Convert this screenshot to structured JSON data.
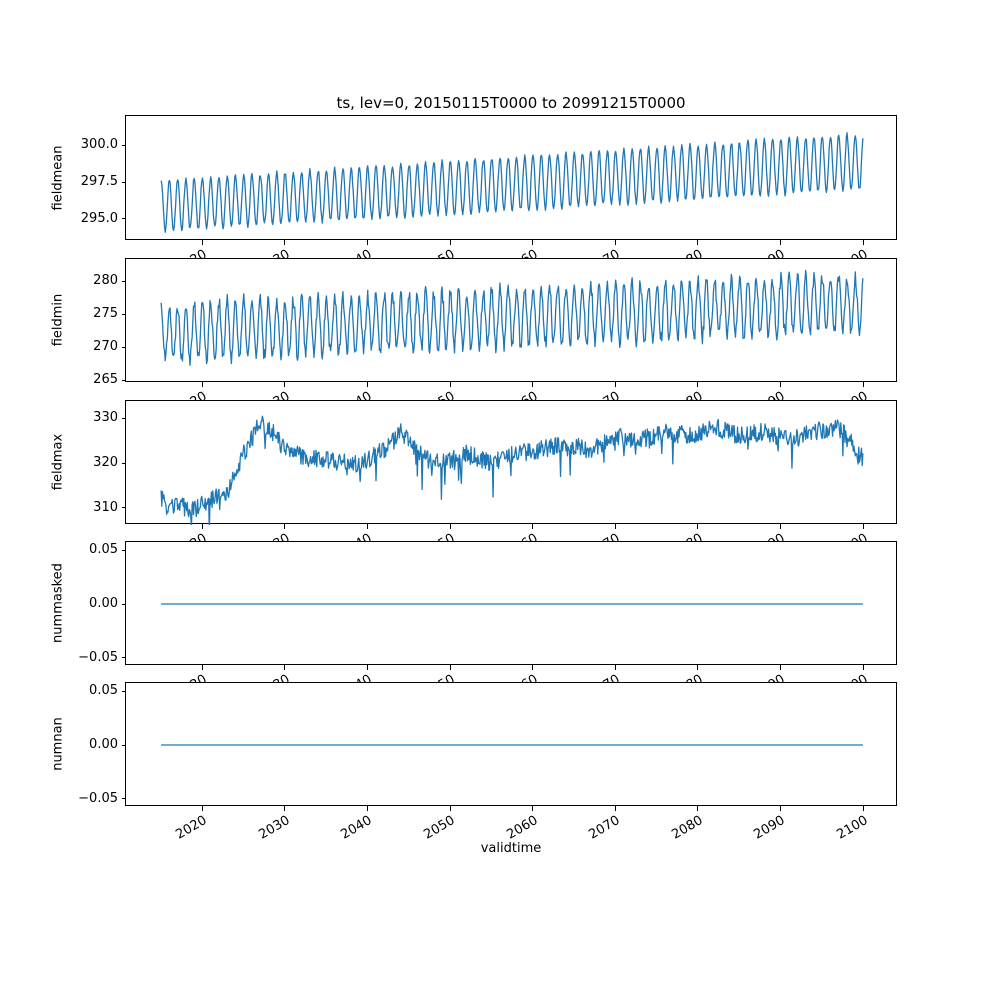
{
  "title": "ts, lev=0, 20150115T0000 to 20991215T0000",
  "line_color": "#1f77b4",
  "x_axis": {
    "label": "validtime",
    "xlim": [
      2010.79,
      2104.21
    ],
    "tick_values": [
      2020,
      2030,
      2040,
      2050,
      2060,
      2070,
      2080,
      2090,
      2100
    ],
    "tick_labels": [
      "2020",
      "2030",
      "2040",
      "2050",
      "2060",
      "2070",
      "2080",
      "2090",
      "2100"
    ]
  },
  "chart_data": [
    {
      "type": "line",
      "ylabel": "fieldmean",
      "ylim": [
        293.5,
        302.0
      ],
      "ytick_values": [
        295.0,
        297.5,
        300.0
      ],
      "ytick_labels": [
        "295.0",
        "297.5",
        "300.0"
      ],
      "x_range": [
        2015.04,
        2099.96
      ],
      "points_per_year": 12,
      "series_model": {
        "kind": "seasonal",
        "base_start": 295.9,
        "base_end": 298.9,
        "amp_start": 1.7,
        "amp_end": 1.9,
        "phase": 0.21,
        "noise": 0.15,
        "seed": 11
      },
      "summary": "Monthly mean field: annual cycle oscillating ~294.2-297.6 in 2015 rising steadily to ~297.0-301.5 by 2100"
    },
    {
      "type": "line",
      "ylabel": "fieldmin",
      "ylim": [
        264.6,
        283.4
      ],
      "ytick_values": [
        265,
        270,
        275,
        280
      ],
      "ytick_labels": [
        "265",
        "270",
        "275",
        "280"
      ],
      "x_range": [
        2015.04,
        2099.96
      ],
      "points_per_year": 12,
      "series_model": {
        "kind": "seasonal",
        "base_start": 272.3,
        "base_end": 276.8,
        "amp_start": 4.2,
        "amp_end": 4.2,
        "phase": 0.21,
        "noise": 1.1,
        "seed": 22
      },
      "summary": "Monthly minimum field: noisy annual cycle ~265.5-280 early, rising to ~271-282.5 by 2100"
    },
    {
      "type": "line",
      "ylabel": "fieldmax",
      "ylim": [
        306.2,
        333.8
      ],
      "ytick_values": [
        310,
        320,
        330
      ],
      "ytick_labels": [
        "310",
        "320",
        "330"
      ],
      "x_range": [
        2015.04,
        2099.96
      ],
      "points_per_year": 12,
      "series_model": {
        "kind": "piecewise",
        "noise": 2.0,
        "dip_prob": 0.05,
        "dip_max": 7,
        "seed": 33,
        "knots": [
          [
            2015.0,
            314
          ],
          [
            2015.5,
            310
          ],
          [
            2017,
            310.5
          ],
          [
            2019,
            309.5
          ],
          [
            2021,
            312
          ],
          [
            2023,
            313
          ],
          [
            2025,
            322
          ],
          [
            2027,
            329
          ],
          [
            2028.5,
            327
          ],
          [
            2030,
            323
          ],
          [
            2033,
            321
          ],
          [
            2036,
            320.5
          ],
          [
            2039,
            319.5
          ],
          [
            2042,
            323
          ],
          [
            2044,
            327
          ],
          [
            2045.5,
            324
          ],
          [
            2047,
            321
          ],
          [
            2049,
            320
          ],
          [
            2052,
            322
          ],
          [
            2055,
            320
          ],
          [
            2058,
            322
          ],
          [
            2061,
            323
          ],
          [
            2064,
            324
          ],
          [
            2067,
            323
          ],
          [
            2070,
            326
          ],
          [
            2073,
            325
          ],
          [
            2076,
            327
          ],
          [
            2079,
            326
          ],
          [
            2082,
            328
          ],
          [
            2085,
            326
          ],
          [
            2088,
            327
          ],
          [
            2091,
            325
          ],
          [
            2094,
            327
          ],
          [
            2097,
            328
          ],
          [
            2100,
            321
          ]
        ]
      },
      "summary": "Monthly maximum field: ~308-314 until ~2022, sharp rise to ~330 by 2027, then noisy 315-332 with slight upward drift"
    },
    {
      "type": "line",
      "ylabel": "nummasked",
      "ylim": [
        -0.0575,
        0.0575
      ],
      "ytick_values": [
        -0.05,
        0.0,
        0.05
      ],
      "ytick_labels": [
        "−0.05",
        "0.00",
        "0.05"
      ],
      "x_range": [
        2015.04,
        2099.96
      ],
      "points_per_year": 12,
      "series_model": {
        "kind": "constant",
        "value": 0,
        "seed": 44
      },
      "summary": "Constant zero masked-point count for entire record"
    },
    {
      "type": "line",
      "ylabel": "numnan",
      "ylim": [
        -0.0575,
        0.0575
      ],
      "ytick_values": [
        -0.05,
        0.0,
        0.05
      ],
      "ytick_labels": [
        "−0.05",
        "0.00",
        "0.05"
      ],
      "x_range": [
        2015.04,
        2099.96
      ],
      "points_per_year": 12,
      "series_model": {
        "kind": "constant",
        "value": 0,
        "seed": 55
      },
      "summary": "Constant zero NaN count for entire record"
    }
  ]
}
